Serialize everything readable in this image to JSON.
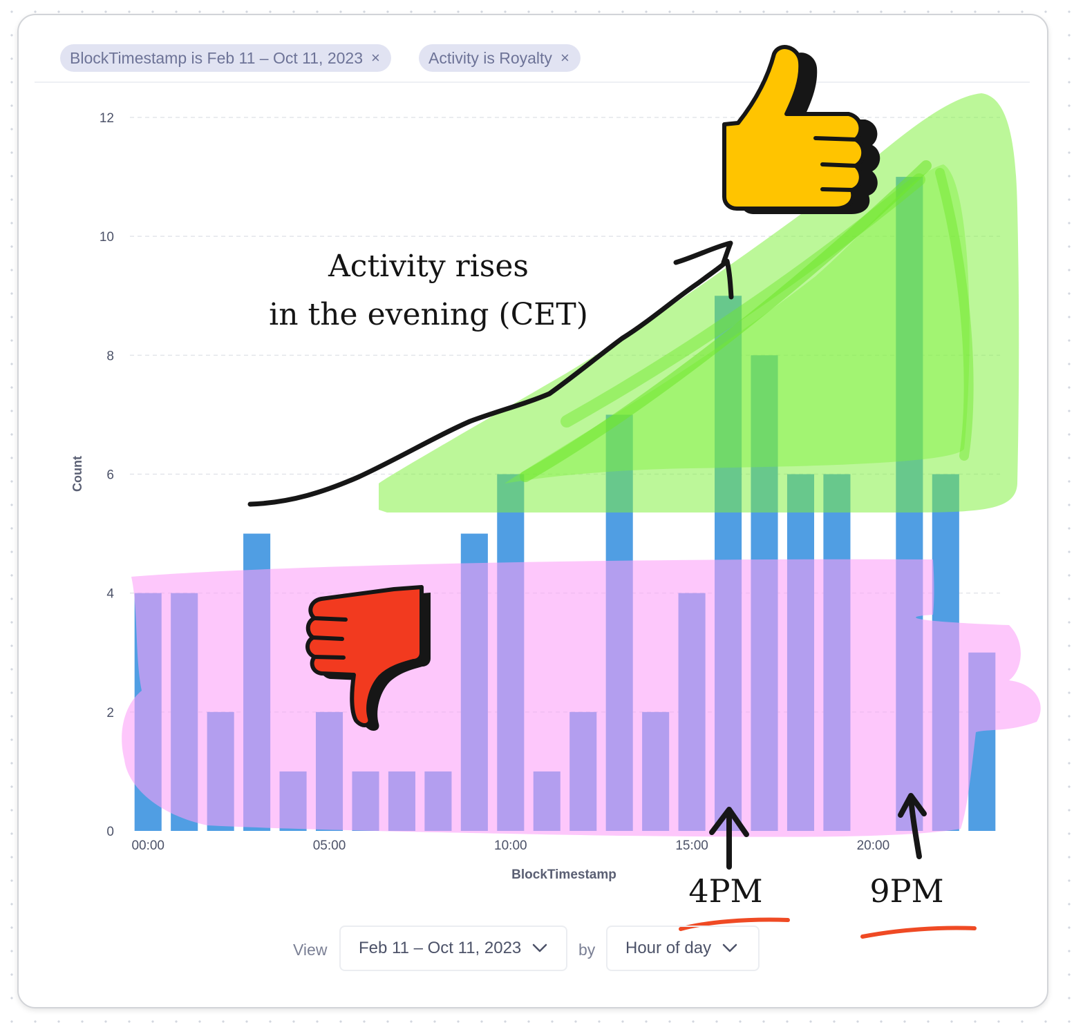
{
  "filters": [
    {
      "label": "BlockTimestamp is Feb 11 – Oct 11, 2023",
      "close": "×"
    },
    {
      "label": "Activity is Royalty",
      "close": "×"
    }
  ],
  "chart_data": {
    "type": "bar",
    "xlabel": "BlockTimestamp",
    "ylabel": "Count",
    "ylim": [
      0,
      12
    ],
    "yticks": [
      "0",
      "2",
      "4",
      "6",
      "8",
      "10",
      "12"
    ],
    "xticks": [
      {
        "hour": 0,
        "label": "00:00"
      },
      {
        "hour": 5,
        "label": "05:00"
      },
      {
        "hour": 10,
        "label": "10:00"
      },
      {
        "hour": 15,
        "label": "15:00"
      },
      {
        "hour": 20,
        "label": "20:00"
      }
    ],
    "hours": [
      0,
      1,
      2,
      3,
      4,
      5,
      6,
      7,
      8,
      9,
      10,
      11,
      12,
      13,
      14,
      15,
      16,
      17,
      18,
      19,
      20,
      21,
      22,
      23
    ],
    "values": [
      4,
      4,
      2,
      5,
      1,
      2,
      1,
      1,
      1,
      5,
      6,
      1,
      2,
      7,
      2,
      4,
      9,
      8,
      6,
      6,
      0,
      11,
      6,
      3
    ],
    "grid": true,
    "colors": {
      "bar": "#509ee3",
      "green": "#7ff03c",
      "pink": "#fb9ff8",
      "red_underline": "#ef4a24"
    }
  },
  "annotations": {
    "text_line1": "Activity rises",
    "text_line2": "in the evening (CET)",
    "label_4pm": "4PM",
    "label_9pm": "9PM",
    "icons": [
      "thumbs-up-icon",
      "thumbs-down-icon"
    ]
  },
  "footer": {
    "view_label": "View",
    "range_value": "Feb 11 – Oct 11, 2023",
    "by_label": "by",
    "granularity_value": "Hour of day"
  }
}
